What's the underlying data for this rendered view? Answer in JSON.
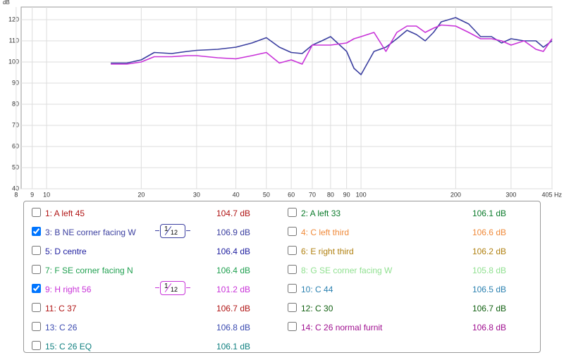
{
  "chart_data": {
    "type": "line",
    "y_label": "dB",
    "log_x": true,
    "grid": true,
    "xlim": [
      8.3,
      405
    ],
    "ylim": [
      40,
      126
    ],
    "xticks": [
      8,
      9,
      10,
      20,
      30,
      40,
      50,
      60,
      70,
      80,
      90,
      100,
      200,
      300,
      {
        "value": 405,
        "label": "405 Hz"
      }
    ],
    "yticks": [
      40,
      50,
      60,
      70,
      80,
      90,
      100,
      110,
      120
    ],
    "x": [
      16,
      18,
      20,
      22,
      25,
      28,
      30,
      35,
      40,
      45,
      50,
      55,
      60,
      65,
      70,
      75,
      80,
      90,
      95,
      100,
      110,
      120,
      130,
      140,
      150,
      160,
      170,
      180,
      200,
      220,
      240,
      260,
      280,
      300,
      330,
      360,
      380,
      405
    ],
    "series": [
      {
        "color": "#3b3fa0",
        "values": [
          99.5,
          99.5,
          101,
          104.5,
          104,
          105,
          105.5,
          106,
          107,
          109,
          111.5,
          107,
          104.5,
          104,
          108,
          110,
          112,
          105,
          97,
          94,
          105,
          107,
          111,
          115,
          113,
          110,
          114,
          119,
          121,
          118,
          112,
          112,
          109,
          111,
          110,
          110,
          107,
          110
        ]
      },
      {
        "color": "#c832d8",
        "values": [
          99,
          99,
          100,
          102.5,
          102.5,
          103,
          103,
          102,
          101.5,
          103,
          104.5,
          99.5,
          101,
          99,
          108,
          108,
          108,
          109,
          111,
          112,
          114,
          105,
          114,
          117,
          117,
          114,
          116,
          117.5,
          117,
          114,
          111,
          111,
          110,
          108,
          110,
          106,
          105,
          111
        ]
      }
    ]
  },
  "measurements": [
    {
      "name": "1: A left 45",
      "level": "104.7 dB",
      "color": "#b01414",
      "checked": false
    },
    {
      "name": "2: A left 33",
      "level": "106.1 dB",
      "color": "#0a7a2a",
      "checked": false
    },
    {
      "name": "3: B NE corner facing W",
      "level": "106.9 dB",
      "color": "#3b3fa0",
      "checked": true,
      "smoothing": {
        "num": "1",
        "den": "12"
      }
    },
    {
      "name": "4: C left third",
      "level": "106.6 dB",
      "color": "#f08a3a",
      "checked": false
    },
    {
      "name": "5: D centre",
      "level": "106.4 dB",
      "color": "#2020a0",
      "checked": false
    },
    {
      "name": "6: E right third",
      "level": "106.2 dB",
      "color": "#b08010",
      "checked": false
    },
    {
      "name": "7: F SE corner facing N",
      "level": "106.4 dB",
      "color": "#20a050",
      "checked": false
    },
    {
      "name": "8: G SE corner facing W",
      "level": "105.8 dB",
      "color": "#90e090",
      "checked": false
    },
    {
      "name": "9: H right 56",
      "level": "101.2 dB",
      "color": "#c832d8",
      "checked": true,
      "smoothing": {
        "num": "1",
        "den": "12"
      }
    },
    {
      "name": "10: C 44",
      "level": "106.5 dB",
      "color": "#2a80b0",
      "checked": false
    },
    {
      "name": "11: C 37",
      "level": "106.7 dB",
      "color": "#b01414",
      "checked": false
    },
    {
      "name": "12: C 30",
      "level": "106.7 dB",
      "color": "#106010",
      "checked": false
    },
    {
      "name": "13: C 26",
      "level": "106.8 dB",
      "color": "#3a4ab0",
      "checked": false
    },
    {
      "name": "14: C 26 normal furnit",
      "level": "106.8 dB",
      "color": "#a01090",
      "checked": false
    },
    {
      "name": "15: C 26 EQ",
      "level": "106.1 dB",
      "color": "#108080",
      "checked": false
    }
  ]
}
